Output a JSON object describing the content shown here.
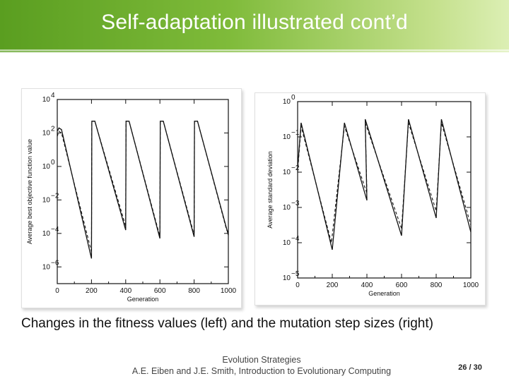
{
  "slide": {
    "title": "Self-adaptation illustrated cont’d",
    "caption": "Changes in the fitness values (left) and the mutation step sizes (right)",
    "footer_line1": "Evolution Strategies",
    "footer_line2": "A.E. Eiben and J.E. Smith, Introduction to Evolutionary Computing",
    "page_number": "26 / 30"
  },
  "chart_data": [
    {
      "type": "line",
      "xlabel": "Generation",
      "ylabel": "Average best objective function value",
      "xlim": [
        0,
        1000
      ],
      "ylim_log10": [
        -7,
        4
      ],
      "y_scale": "log",
      "x_ticks": [
        "0",
        "200",
        "400",
        "600",
        "800",
        "1000"
      ],
      "y_ticks": [
        {
          "mantissa": "10",
          "exp": "4",
          "log": 4
        },
        {
          "mantissa": "10",
          "exp": "2",
          "log": 2
        },
        {
          "mantissa": "10",
          "exp": "0",
          "log": 0
        },
        {
          "mantissa": "10",
          "exp": "−2",
          "log": -2
        },
        {
          "mantissa": "10",
          "exp": "−4",
          "log": -4
        },
        {
          "mantissa": "10",
          "exp": "−6",
          "log": -6
        }
      ],
      "series": [
        {
          "style": "solid",
          "x": [
            0,
            10,
            25,
            200,
            202,
            220,
            400,
            402,
            420,
            600,
            602,
            620,
            800,
            802,
            820,
            1000
          ],
          "log10y": [
            2.1,
            2.3,
            2.2,
            -5.5,
            2.7,
            2.7,
            -3.8,
            2.7,
            2.7,
            -4.3,
            2.7,
            2.7,
            -4.2,
            2.7,
            2.7,
            -4.1
          ]
        },
        {
          "style": "dashed",
          "x": [
            0,
            10,
            25,
            195,
            200,
            202,
            220,
            395,
            400,
            402,
            420,
            595,
            600,
            602,
            620,
            795,
            800,
            802,
            820,
            990,
            1000
          ],
          "log10y": [
            1.8,
            2.1,
            2.0,
            -4.9,
            -5.1,
            2.7,
            2.7,
            -3.4,
            -3.6,
            2.7,
            2.7,
            -4.0,
            -4.1,
            2.7,
            2.7,
            -3.9,
            -4.0,
            2.7,
            2.7,
            -3.8,
            -3.9
          ]
        }
      ]
    },
    {
      "type": "line",
      "xlabel": "Generation",
      "ylabel": "Average standard deviation",
      "xlim": [
        0,
        1000
      ],
      "ylim_log10": [
        -5,
        0
      ],
      "y_scale": "log",
      "x_ticks": [
        "0",
        "200",
        "400",
        "600",
        "800",
        "1000"
      ],
      "y_ticks": [
        {
          "mantissa": "10",
          "exp": "0",
          "log": 0
        },
        {
          "mantissa": "10",
          "exp": "−1",
          "log": -1
        },
        {
          "mantissa": "10",
          "exp": "−2",
          "log": -2
        },
        {
          "mantissa": "10",
          "exp": "−3",
          "log": -3
        },
        {
          "mantissa": "10",
          "exp": "−4",
          "log": -4
        },
        {
          "mantissa": "10",
          "exp": "−5",
          "log": -5
        }
      ],
      "series": [
        {
          "style": "solid",
          "x": [
            0,
            20,
            200,
            270,
            400,
            390,
            600,
            640,
            800,
            830,
            1000
          ],
          "log10y": [
            -1.9,
            -0.6,
            -4.2,
            -0.6,
            -2.8,
            -0.5,
            -3.8,
            -0.5,
            -3.3,
            -0.5,
            -3.7
          ]
        },
        {
          "style": "dashed",
          "x": [
            0,
            20,
            195,
            270,
            400,
            390,
            600,
            640,
            800,
            830,
            1000
          ],
          "log10y": [
            -2.0,
            -0.7,
            -4.0,
            -0.7,
            -2.6,
            -0.6,
            -3.6,
            -0.6,
            -3.1,
            -0.6,
            -3.5
          ]
        }
      ]
    }
  ]
}
